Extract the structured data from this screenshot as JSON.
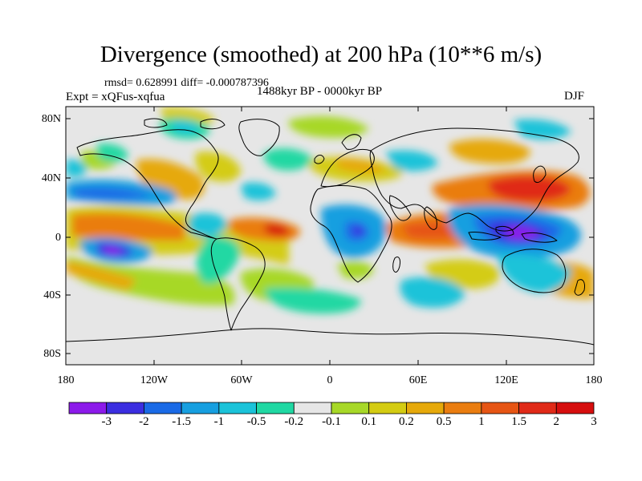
{
  "title": "Divergence (smoothed) at 200 hPa (10**6 m/s)",
  "stats": "rmsd= 0.628991 diff= -0.000787396",
  "period": "1488kyr BP - 0000kyr BP",
  "experiment": "Expt = xQFus-xqfua",
  "season": "DJF",
  "lat_labels": [
    "80N",
    "40N",
    "0",
    "40S",
    "80S"
  ],
  "lon_labels": [
    "180",
    "120W",
    "60W",
    "0",
    "60E",
    "120E",
    "180"
  ],
  "colorbar": {
    "labels": [
      "-3",
      "-2",
      "-1.5",
      "-1",
      "-0.5",
      "-0.2",
      "-0.1",
      "0.1",
      "0.2",
      "0.5",
      "1",
      "1.5",
      "2",
      "3"
    ],
    "colors": [
      "#8c1aea",
      "#3b2ee0",
      "#1a6ae6",
      "#179fe0",
      "#1bc3d9",
      "#20d8a3",
      "#e6e6e6",
      "#a7d828",
      "#d4cc12",
      "#e6a90a",
      "#ea7d10",
      "#e65514",
      "#e02a18",
      "#d60e0e"
    ]
  }
}
